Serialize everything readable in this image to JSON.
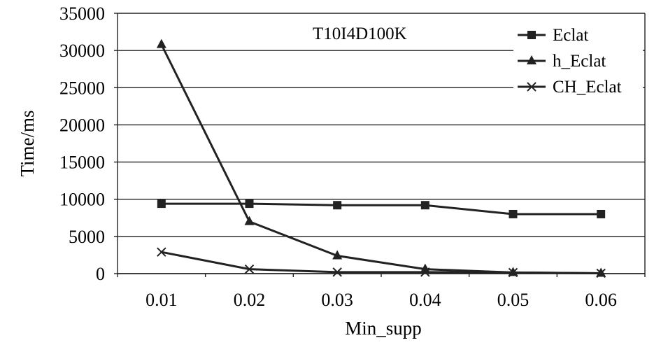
{
  "chart_data": {
    "type": "line",
    "annotation": "T10I4D100K",
    "xlabel": "Min_supp",
    "ylabel": "Time/ms",
    "categories": [
      "0.01",
      "0.02",
      "0.03",
      "0.04",
      "0.05",
      "0.06"
    ],
    "yticks": [
      "0",
      "5000",
      "10000",
      "15000",
      "20000",
      "25000",
      "30000",
      "35000"
    ],
    "ylim": [
      0,
      35000
    ],
    "grid": "horizontal",
    "legend_position": "top-right",
    "series": [
      {
        "name": "Eclat",
        "marker": "square",
        "values": [
          9400,
          9400,
          9200,
          9200,
          8000,
          8000
        ]
      },
      {
        "name": "h_Eclat",
        "marker": "triangle",
        "values": [
          30800,
          7000,
          2400,
          600,
          150,
          50
        ]
      },
      {
        "name": "CH_Eclat",
        "marker": "x",
        "values": [
          2900,
          600,
          200,
          200,
          150,
          50
        ]
      }
    ]
  }
}
